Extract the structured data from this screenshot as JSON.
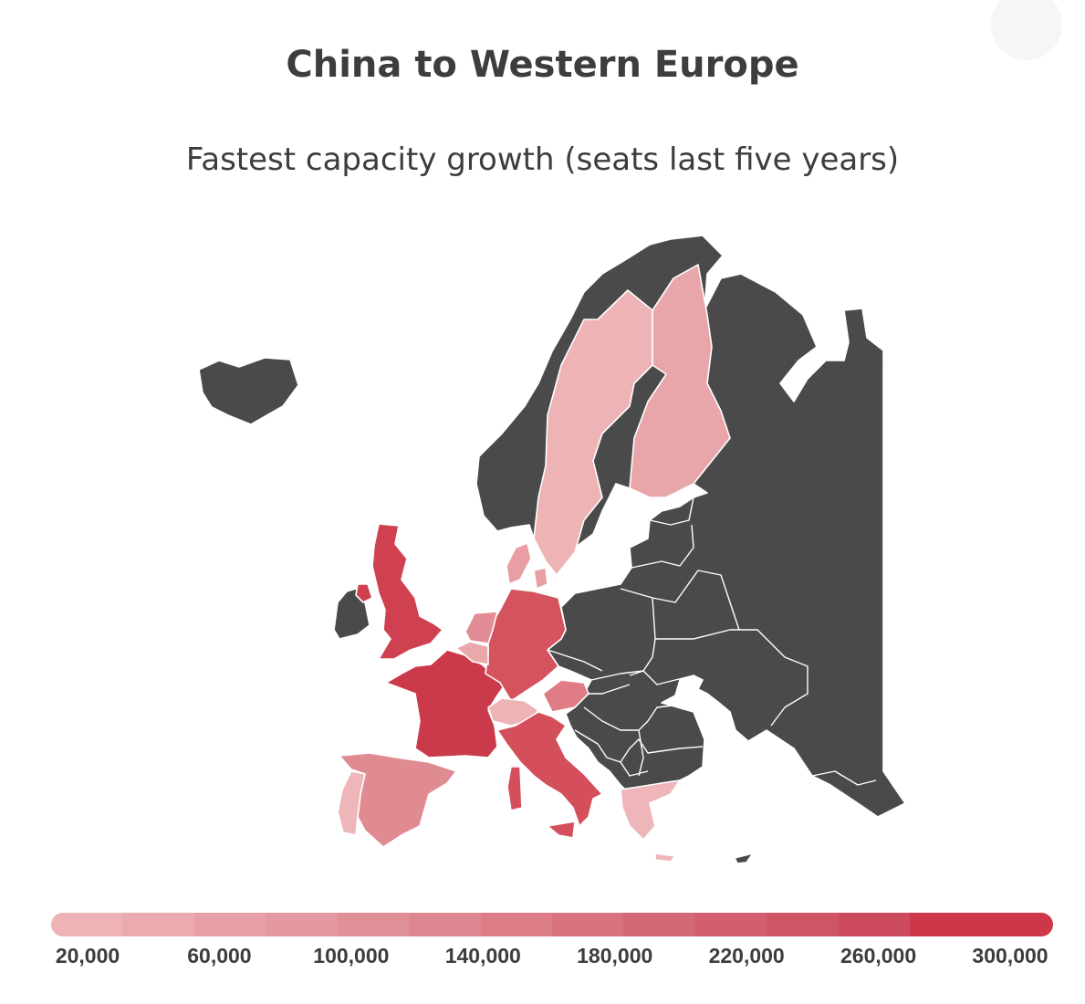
{
  "header": {
    "title": "China to Western Europe",
    "subtitle": "Fastest capacity growth (seats last five years)"
  },
  "colors": {
    "no_data": "#4a4a4a",
    "scale_low": "#edb3b5",
    "scale_high": "#cc3848",
    "border": "#ffffff"
  },
  "regions": [
    {
      "name": "United Kingdom",
      "color": "#cf4150"
    },
    {
      "name": "France",
      "color": "#cb3a4a"
    },
    {
      "name": "Germany",
      "color": "#d4535f"
    },
    {
      "name": "Italy",
      "color": "#d44e5c"
    },
    {
      "name": "Spain",
      "color": "#e08a92"
    },
    {
      "name": "Portugal",
      "color": "#eeb6b8"
    },
    {
      "name": "Netherlands",
      "color": "#e28d95"
    },
    {
      "name": "Belgium",
      "color": "#eaa8ab"
    },
    {
      "name": "Switzerland",
      "color": "#edb3b5"
    },
    {
      "name": "Austria",
      "color": "#e07c86"
    },
    {
      "name": "Denmark",
      "color": "#e89ea3"
    },
    {
      "name": "Sweden",
      "color": "#edb3b5"
    },
    {
      "name": "Finland",
      "color": "#e9a6aa"
    },
    {
      "name": "Greece",
      "color": "#eeb6b8"
    },
    {
      "name": "Ireland",
      "color": "#4a4a4a"
    },
    {
      "name": "Norway",
      "color": "#4a4a4a"
    },
    {
      "name": "Iceland",
      "color": "#4a4a4a"
    }
  ],
  "legend": {
    "gradient": [
      "#edb3b5",
      "#eaaaae",
      "#e7a1a6",
      "#e4989f",
      "#e18f97",
      "#de868f",
      "#db7c87",
      "#d8727f",
      "#d56877",
      "#d25e6f",
      "#cf5466",
      "#cc4a5d",
      "#cc3848",
      "#cc3848"
    ],
    "ticks": [
      {
        "label": "20,000",
        "value": 20000
      },
      {
        "label": "60,000",
        "value": 60000
      },
      {
        "label": "100,000",
        "value": 100000
      },
      {
        "label": "140,000",
        "value": 140000
      },
      {
        "label": "180,000",
        "value": 180000
      },
      {
        "label": "220,000",
        "value": 220000
      },
      {
        "label": "260,000",
        "value": 260000
      },
      {
        "label": "300,000",
        "value": 300000
      }
    ]
  }
}
